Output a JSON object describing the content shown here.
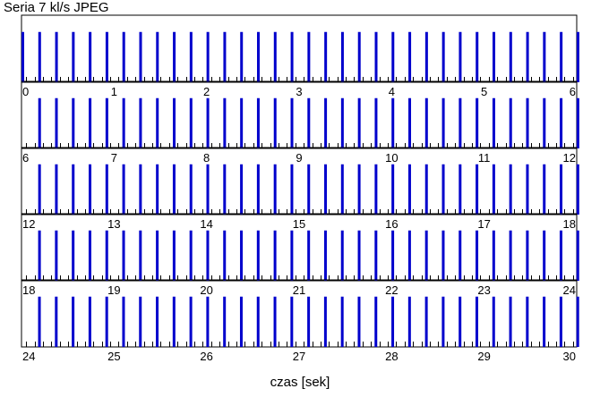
{
  "chart_data": {
    "type": "timeline",
    "title": "Seria 7 kl/s JPEG",
    "xlabel": "czas [sek]",
    "ylabel": "",
    "colors": {
      "frame": "#0000cc",
      "minor": "#000000"
    },
    "grid": false,
    "rows": [
      {
        "range": [
          0,
          6
        ],
        "tick_labels": [
          "0",
          "1",
          "2",
          "3",
          "4",
          "5",
          "6"
        ]
      },
      {
        "range": [
          6,
          12
        ],
        "tick_labels": [
          "6",
          "7",
          "8",
          "9",
          "10",
          "11",
          "12"
        ]
      },
      {
        "range": [
          12,
          18
        ],
        "tick_labels": [
          "12",
          "13",
          "14",
          "15",
          "16",
          "17",
          "18"
        ]
      },
      {
        "range": [
          18,
          24
        ],
        "tick_labels": [
          "18",
          "19",
          "20",
          "21",
          "22",
          "23",
          "24"
        ]
      },
      {
        "range": [
          24,
          30
        ],
        "tick_labels": [
          "24",
          "25",
          "26",
          "27",
          "28",
          "29",
          "30"
        ]
      }
    ],
    "series": [
      {
        "start": 0.0,
        "end": 30.1,
        "interval": 0.1818,
        "height": 0.75
      }
    ],
    "minor_marks": {
      "interval": 0.0909,
      "height": 0.08,
      "offset": 0.05
    }
  }
}
